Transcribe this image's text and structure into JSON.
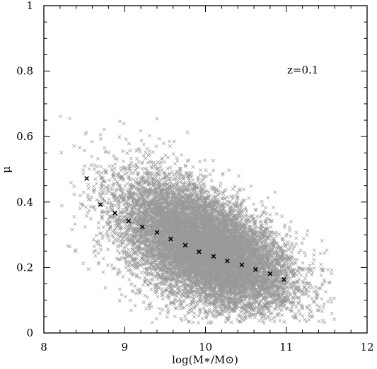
{
  "chart_data": {
    "type": "scatter",
    "xlim": [
      8,
      12
    ],
    "ylim": [
      0,
      1
    ],
    "x_ticks": [
      "8",
      "9",
      "10",
      "11",
      "12"
    ],
    "y_ticks": [
      "0",
      "0.2",
      "0.4",
      "0.6",
      "0.8",
      "1"
    ],
    "xlabel": "log(M∗/M⊙)",
    "ylabel": "μ",
    "annotation": "z=0.1",
    "grid": false,
    "legend": "none",
    "colors": {
      "scatter": "#999999",
      "median": "#000000"
    },
    "scatter_cloud": {
      "marker": "x",
      "n_points": 12000,
      "x_range": [
        8.2,
        11.6
      ],
      "y_range": [
        0.03,
        0.78
      ],
      "trend": "mu decreases with log mass from about 0.45 at 8.5 to about 0.16 at 11, large scatter"
    },
    "series": [
      {
        "marker": "x",
        "x": [
          8.53,
          8.7,
          8.88,
          9.05,
          9.22,
          9.4,
          9.57,
          9.75,
          9.92,
          10.1,
          10.27,
          10.45,
          10.62,
          10.8,
          10.97
        ],
        "y": [
          0.472,
          0.392,
          0.366,
          0.342,
          0.324,
          0.307,
          0.287,
          0.268,
          0.248,
          0.234,
          0.22,
          0.208,
          0.194,
          0.181,
          0.163
        ]
      }
    ]
  }
}
